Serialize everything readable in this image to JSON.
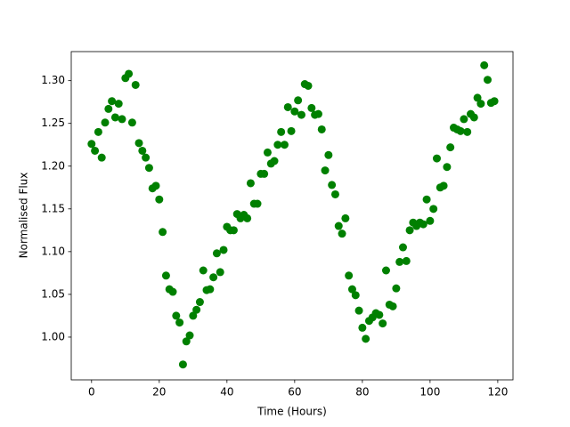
{
  "chart_data": {
    "type": "scatter",
    "xlabel": "Time (Hours)",
    "ylabel": "Normalised Flux",
    "color": "#008000",
    "x": [
      0,
      1,
      2,
      3,
      4,
      5,
      6,
      7,
      8,
      9,
      10,
      11,
      12,
      13,
      14,
      15,
      16,
      17,
      18,
      19,
      20,
      21,
      22,
      23,
      24,
      25,
      26,
      27,
      28,
      29,
      30,
      31,
      32,
      33,
      34,
      35,
      36,
      37,
      38,
      39,
      40,
      41,
      42,
      43,
      44,
      45,
      46,
      47,
      48,
      49,
      50,
      51,
      52,
      53,
      54,
      55,
      56,
      57,
      58,
      59,
      60,
      61,
      62,
      63,
      64,
      65,
      66,
      67,
      68,
      69,
      70,
      71,
      72,
      73,
      74,
      75,
      76,
      77,
      78,
      79,
      80,
      81,
      82,
      83,
      84,
      85,
      86,
      87,
      88,
      89,
      90,
      91,
      92,
      93,
      94,
      95,
      96,
      97,
      98,
      99,
      100,
      101,
      102,
      103,
      104,
      105,
      106,
      107,
      108,
      109,
      110,
      111,
      112,
      113,
      114,
      115,
      116,
      117,
      118,
      119
    ],
    "values": [
      1.226,
      1.218,
      1.24,
      1.21,
      1.251,
      1.267,
      1.276,
      1.257,
      1.273,
      1.255,
      1.303,
      1.308,
      1.251,
      1.295,
      1.227,
      1.218,
      1.21,
      1.198,
      1.174,
      1.177,
      1.161,
      1.123,
      1.072,
      1.056,
      1.053,
      1.025,
      1.017,
      0.968,
      0.995,
      1.002,
      1.025,
      1.032,
      1.041,
      1.078,
      1.055,
      1.056,
      1.07,
      1.098,
      1.076,
      1.102,
      1.129,
      1.125,
      1.125,
      1.144,
      1.139,
      1.143,
      1.139,
      1.18,
      1.156,
      1.156,
      1.191,
      1.191,
      1.216,
      1.203,
      1.206,
      1.225,
      1.24,
      1.225,
      1.269,
      1.241,
      1.264,
      1.277,
      1.26,
      1.296,
      1.294,
      1.268,
      1.26,
      1.261,
      1.243,
      1.195,
      1.213,
      1.178,
      1.167,
      1.13,
      1.121,
      1.139,
      1.072,
      1.056,
      1.049,
      1.031,
      1.011,
      0.998,
      1.019,
      1.023,
      1.028,
      1.026,
      1.016,
      1.078,
      1.038,
      1.036,
      1.057,
      1.088,
      1.105,
      1.089,
      1.125,
      1.134,
      1.13,
      1.134,
      1.132,
      1.161,
      1.136,
      1.15,
      1.209,
      1.175,
      1.177,
      1.199,
      1.222,
      1.245,
      1.243,
      1.241,
      1.255,
      1.24,
      1.261,
      1.257,
      1.28,
      1.273,
      1.318,
      1.301,
      1.274,
      1.276
    ],
    "xlim": [
      -6,
      124.5
    ],
    "ylim": [
      0.95,
      1.334
    ],
    "xticks": [
      0,
      20,
      40,
      60,
      80,
      100,
      120
    ],
    "yticks": [
      {
        "value": 1,
        "label": "1.00"
      },
      {
        "value": 1.05,
        "label": "1.05"
      },
      {
        "value": 1.1,
        "label": "1.10"
      },
      {
        "value": 1.15,
        "label": "1.15"
      },
      {
        "value": 1.2,
        "label": "1.20"
      },
      {
        "value": 1.25,
        "label": "1.25"
      },
      {
        "value": 1.3,
        "label": "1.30"
      }
    ]
  }
}
